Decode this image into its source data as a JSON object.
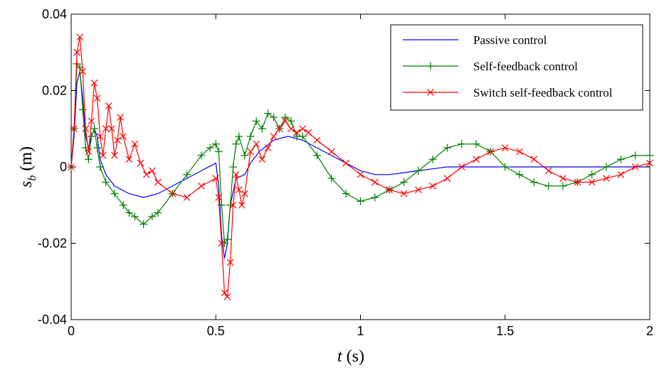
{
  "chart_data": {
    "type": "line",
    "xlabel": {
      "var": "t",
      "unit": " (s)"
    },
    "ylabel": {
      "var": "s",
      "sub": "b",
      "unit": " (m)"
    },
    "xlim": [
      0,
      2
    ],
    "ylim": [
      -0.04,
      0.04
    ],
    "xticks": [
      0,
      0.5,
      1,
      1.5,
      2
    ],
    "xtick_labels": [
      "0",
      "0.5",
      "1",
      "1.5",
      "2"
    ],
    "yticks": [
      -0.04,
      -0.02,
      0,
      0.02,
      0.04
    ],
    "ytick_labels": [
      "-0.04",
      "-0.02",
      "0",
      "0.02",
      "0.04"
    ],
    "grid": false,
    "legend_position": "top-right",
    "series": [
      {
        "name": "Passive control",
        "color": "#0000ff",
        "marker": "none",
        "x": [
          0,
          0.01,
          0.02,
          0.03,
          0.04,
          0.05,
          0.06,
          0.07,
          0.08,
          0.09,
          0.1,
          0.12,
          0.15,
          0.2,
          0.25,
          0.3,
          0.35,
          0.4,
          0.45,
          0.5,
          0.51,
          0.52,
          0.53,
          0.54,
          0.55,
          0.57,
          0.6,
          0.62,
          0.65,
          0.7,
          0.75,
          0.8,
          0.85,
          0.9,
          0.95,
          1.0,
          1.05,
          1.1,
          1.15,
          1.2,
          1.25,
          1.3,
          1.35,
          1.4,
          1.5,
          1.6,
          1.7,
          1.8,
          1.9,
          2.0
        ],
        "y": [
          0,
          0.008,
          0.022,
          0.025,
          0.018,
          0.008,
          0.005,
          0.008,
          0.01,
          0.008,
          0.002,
          -0.002,
          -0.005,
          -0.007,
          -0.008,
          -0.007,
          -0.005,
          -0.003,
          -0.001,
          0.001,
          -0.005,
          -0.018,
          -0.024,
          -0.02,
          -0.01,
          -0.003,
          -0.002,
          0.001,
          0.004,
          0.007,
          0.008,
          0.007,
          0.005,
          0.003,
          0.001,
          -0.001,
          -0.002,
          -0.002,
          -0.0015,
          -0.001,
          -0.0005,
          0,
          0,
          0,
          0,
          0,
          0,
          0,
          0,
          0
        ]
      },
      {
        "name": "Self-feedback control",
        "color": "#008000",
        "marker": "plus",
        "x": [
          0,
          0.01,
          0.02,
          0.03,
          0.04,
          0.05,
          0.06,
          0.07,
          0.08,
          0.09,
          0.1,
          0.12,
          0.15,
          0.18,
          0.2,
          0.22,
          0.25,
          0.28,
          0.3,
          0.35,
          0.4,
          0.45,
          0.48,
          0.5,
          0.51,
          0.52,
          0.53,
          0.54,
          0.55,
          0.56,
          0.57,
          0.58,
          0.6,
          0.62,
          0.64,
          0.66,
          0.68,
          0.7,
          0.72,
          0.74,
          0.76,
          0.78,
          0.8,
          0.85,
          0.9,
          0.95,
          1.0,
          1.05,
          1.1,
          1.15,
          1.2,
          1.25,
          1.3,
          1.35,
          1.4,
          1.45,
          1.5,
          1.55,
          1.6,
          1.65,
          1.7,
          1.75,
          1.8,
          1.85,
          1.9,
          1.95,
          2.0
        ],
        "y": [
          0,
          0.01,
          0.027,
          0.026,
          0.015,
          0.005,
          0.002,
          0.008,
          0.01,
          0.005,
          0,
          -0.004,
          -0.007,
          -0.01,
          -0.012,
          -0.013,
          -0.015,
          -0.013,
          -0.012,
          -0.007,
          -0.002,
          0.003,
          0.005,
          0.006,
          0.004,
          -0.01,
          -0.02,
          -0.019,
          -0.01,
          0,
          0.006,
          0.008,
          0.003,
          0.008,
          0.012,
          0.01,
          0.014,
          0.013,
          0.01,
          0.013,
          0.012,
          0.008,
          0.008,
          0.003,
          -0.003,
          -0.007,
          -0.009,
          -0.008,
          -0.006,
          -0.004,
          -0.001,
          0.002,
          0.005,
          0.006,
          0.006,
          0.004,
          0,
          -0.002,
          -0.004,
          -0.005,
          -0.005,
          -0.004,
          -0.002,
          0,
          0.002,
          0.003,
          0.003
        ]
      },
      {
        "name": "Switch self-feedback control",
        "color": "#ff0000",
        "marker": "x",
        "x": [
          0,
          0.01,
          0.02,
          0.03,
          0.04,
          0.05,
          0.06,
          0.07,
          0.08,
          0.09,
          0.1,
          0.11,
          0.12,
          0.13,
          0.14,
          0.15,
          0.16,
          0.17,
          0.18,
          0.2,
          0.22,
          0.24,
          0.26,
          0.28,
          0.3,
          0.35,
          0.4,
          0.45,
          0.5,
          0.51,
          0.52,
          0.53,
          0.54,
          0.55,
          0.56,
          0.57,
          0.58,
          0.59,
          0.6,
          0.62,
          0.64,
          0.66,
          0.68,
          0.7,
          0.72,
          0.74,
          0.76,
          0.78,
          0.8,
          0.82,
          0.85,
          0.9,
          0.95,
          1.0,
          1.05,
          1.1,
          1.15,
          1.2,
          1.25,
          1.3,
          1.35,
          1.4,
          1.45,
          1.5,
          1.55,
          1.6,
          1.65,
          1.7,
          1.75,
          1.8,
          1.85,
          1.9,
          1.95,
          2.0
        ],
        "y": [
          0,
          0.01,
          0.03,
          0.034,
          0.025,
          0.01,
          0.004,
          0.012,
          0.022,
          0.018,
          0.008,
          0.003,
          0.01,
          0.016,
          0.01,
          0.003,
          0.007,
          0.013,
          0.008,
          0.002,
          0.006,
          0.001,
          -0.002,
          -0.001,
          -0.004,
          -0.007,
          -0.008,
          -0.005,
          -0.003,
          -0.008,
          -0.02,
          -0.033,
          -0.034,
          -0.025,
          -0.01,
          -0.002,
          -0.006,
          -0.01,
          -0.007,
          0.004,
          0.006,
          0.002,
          0.005,
          0.008,
          0.01,
          0.012,
          0.01,
          0.009,
          0.01,
          0.009,
          0.007,
          0.004,
          0.001,
          -0.002,
          -0.004,
          -0.006,
          -0.007,
          -0.006,
          -0.005,
          -0.003,
          0,
          0.002,
          0.004,
          0.005,
          0.004,
          0.002,
          -0.001,
          -0.003,
          -0.004,
          -0.004,
          -0.003,
          -0.002,
          0,
          0.001
        ]
      }
    ]
  }
}
